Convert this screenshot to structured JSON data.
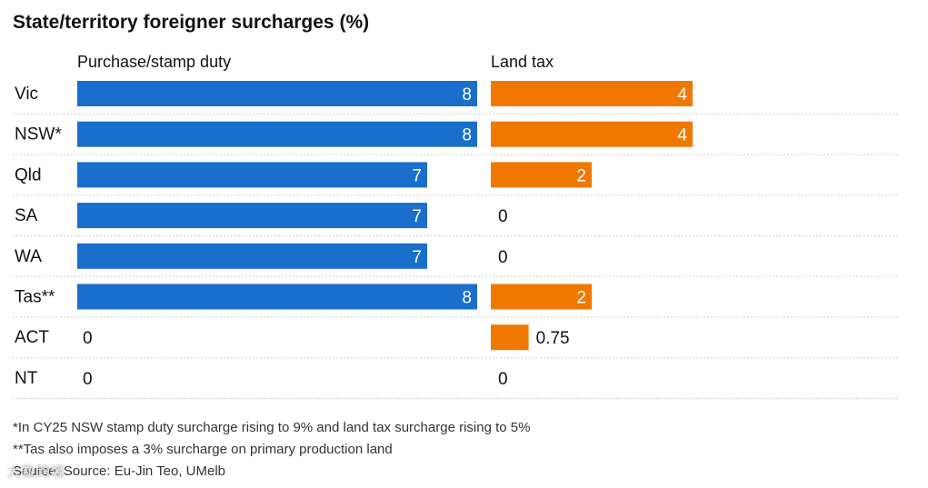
{
  "title": "State/territory foreigner surcharges (%)",
  "chart_data": {
    "type": "bar",
    "title": "State/territory foreigner surcharges (%)",
    "categories": [
      "Vic",
      "NSW*",
      "Qld",
      "SA",
      "WA",
      "Tas**",
      "ACT",
      "NT"
    ],
    "series": [
      {
        "name": "Purchase/stamp duty",
        "values": [
          8,
          8,
          7,
          7,
          7,
          8,
          0,
          0
        ],
        "labels": [
          "8",
          "8",
          "7",
          "7",
          "7",
          "8",
          "0",
          "0"
        ],
        "color": "#1a6ecc"
      },
      {
        "name": "Land tax",
        "values": [
          4,
          4,
          2,
          0,
          0,
          2,
          0.75,
          0
        ],
        "labels": [
          "4",
          "4",
          "2",
          "0",
          "0",
          "2",
          "0.75",
          "0"
        ],
        "color": "#f07800"
      }
    ],
    "xlim": [
      0,
      8
    ],
    "grid": false,
    "orientation": "horizontal"
  },
  "notes": [
    "*In CY25 NSW stamp duty surcharge rising to 9% and land tax surcharge rising to 5%",
    "**Tas also imposes a 3% surcharge on primary production land",
    "Source: Source: Eu-Jin Teo, UMelb"
  ],
  "watermark": "大数跨境",
  "colors": {
    "duty": "#1a6ecc",
    "land": "#f07800",
    "divider": "#bdbdbd",
    "text": "#121212"
  }
}
